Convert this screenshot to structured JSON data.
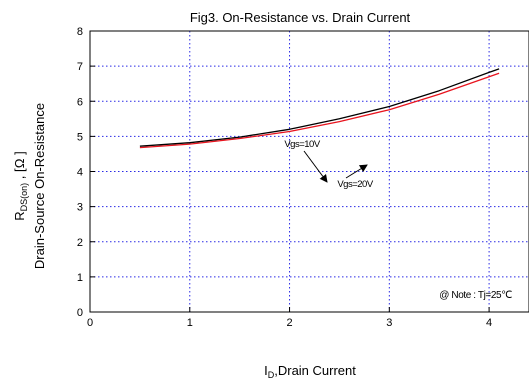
{
  "chart_data": {
    "type": "line",
    "title": "Fig3. On-Resistance vs. Drain Current",
    "xlabel_main": "I",
    "xlabel_sub": "D",
    "xlabel_rest": ",Drain Current",
    "ylabel_line1_main": "R",
    "ylabel_line1_sub": "DS(on)",
    "ylabel_line1_rest": " , [Ω ]",
    "ylabel_line2": "Drain-Source On-Resistance",
    "xlim": [
      0,
      4.4
    ],
    "ylim": [
      0,
      8
    ],
    "xticks": [
      "0",
      "1",
      "2",
      "3",
      "4"
    ],
    "yticks": [
      "0",
      "1",
      "2",
      "3",
      "4",
      "5",
      "6",
      "7",
      "8"
    ],
    "grid": true,
    "series": [
      {
        "name": "Vgs=10V",
        "color": "#000000",
        "x": [
          0.5,
          1.0,
          1.5,
          2.0,
          2.5,
          3.0,
          3.5,
          4.0,
          4.1
        ],
        "y": [
          4.72,
          4.82,
          4.98,
          5.2,
          5.5,
          5.85,
          6.3,
          6.82,
          6.92
        ]
      },
      {
        "name": "Vgs=20V",
        "color": "#e8141e",
        "x": [
          0.5,
          1.0,
          1.5,
          2.0,
          2.5,
          3.0,
          3.5,
          4.0,
          4.1
        ],
        "y": [
          4.68,
          4.78,
          4.94,
          5.14,
          5.42,
          5.76,
          6.2,
          6.7,
          6.8
        ]
      }
    ],
    "annotations": [
      {
        "text": "Vgs=10V"
      },
      {
        "text": "Vgs=20V"
      },
      {
        "text": "@ Note : Tj=25℃"
      }
    ]
  }
}
